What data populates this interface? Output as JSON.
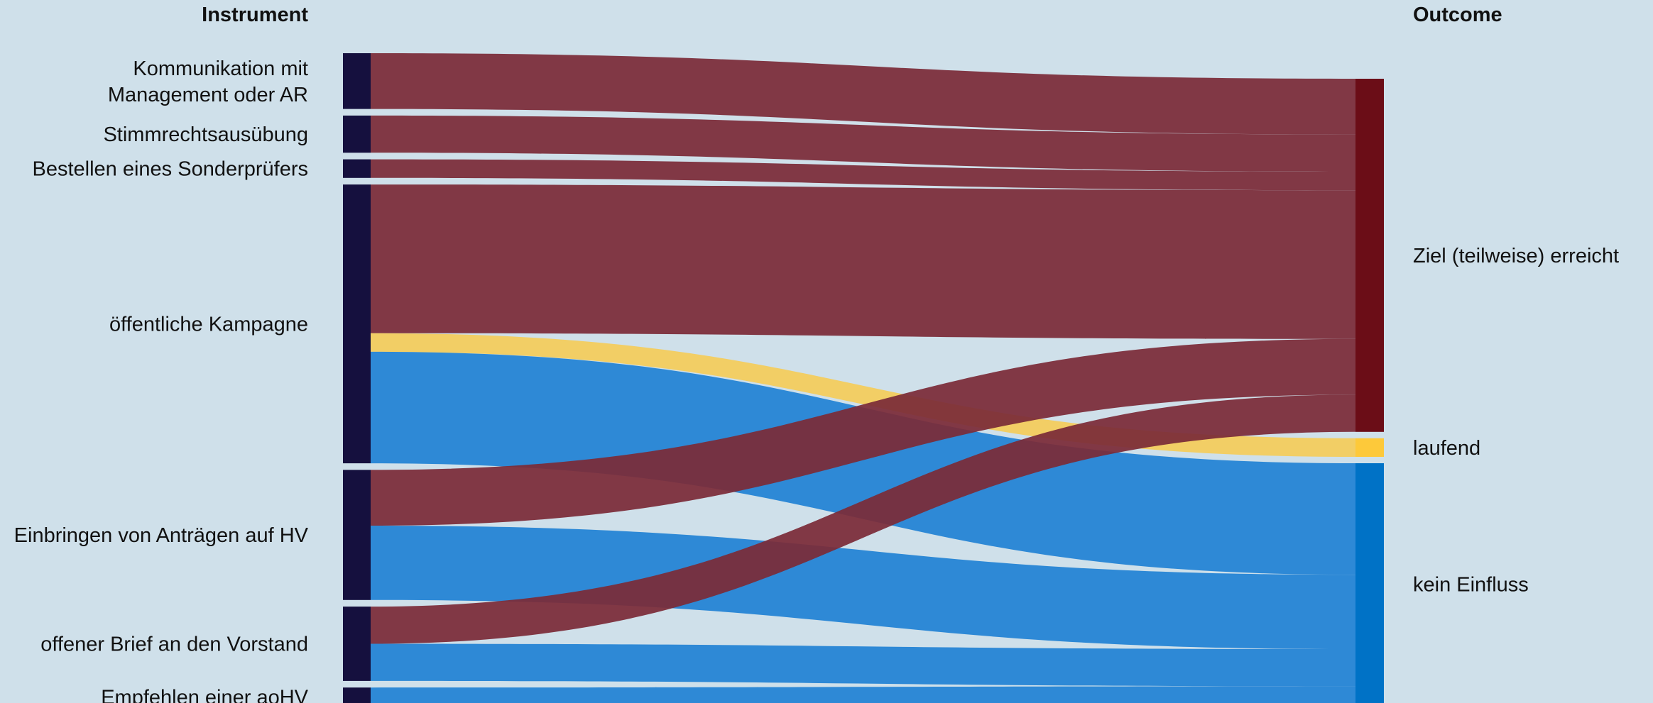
{
  "chart_data": {
    "type": "sankey",
    "source_header": "Instrument",
    "target_header": "Outcome",
    "sources": [
      {
        "label": [
          "Kommunikation mit",
          "Management oder AR"
        ],
        "value": 3
      },
      {
        "label": [
          "Stimmrechtsausübung"
        ],
        "value": 2
      },
      {
        "label": [
          "Bestellen eines Sonderprüfers"
        ],
        "value": 1
      },
      {
        "label": [
          "öffentliche Kampagne"
        ],
        "value": 15
      },
      {
        "label": [
          "Einbringen von Anträgen auf HV"
        ],
        "value": 7
      },
      {
        "label": [
          "offener Brief an den Vorstand"
        ],
        "value": 4
      },
      {
        "label": [
          "Empfehlen einer aoHV"
        ],
        "value": 1
      }
    ],
    "targets": [
      {
        "label": "Ziel (teilweise) erreicht",
        "value": 19
      },
      {
        "label": "laufend",
        "value": 1
      },
      {
        "label": "kein Einfluss",
        "value": 13
      }
    ],
    "flows": [
      {
        "source": 0,
        "target": 0,
        "value": 3
      },
      {
        "source": 1,
        "target": 0,
        "value": 2
      },
      {
        "source": 2,
        "target": 0,
        "value": 1
      },
      {
        "source": 3,
        "target": 0,
        "value": 8
      },
      {
        "source": 3,
        "target": 1,
        "value": 1
      },
      {
        "source": 3,
        "target": 2,
        "value": 6
      },
      {
        "source": 4,
        "target": 0,
        "value": 3
      },
      {
        "source": 4,
        "target": 2,
        "value": 4
      },
      {
        "source": 5,
        "target": 0,
        "value": 2
      },
      {
        "source": 5,
        "target": 2,
        "value": 2
      },
      {
        "source": 6,
        "target": 2,
        "value": 1
      }
    ],
    "colors": {
      "background": "#cfe0ea",
      "source_node": "#15103e",
      "target_nodes": [
        "#6b0d17",
        "#fdc93a",
        "#0072c6"
      ],
      "flows": [
        "#7b2b38",
        "#f4cc5a",
        "#2182d4"
      ]
    }
  }
}
